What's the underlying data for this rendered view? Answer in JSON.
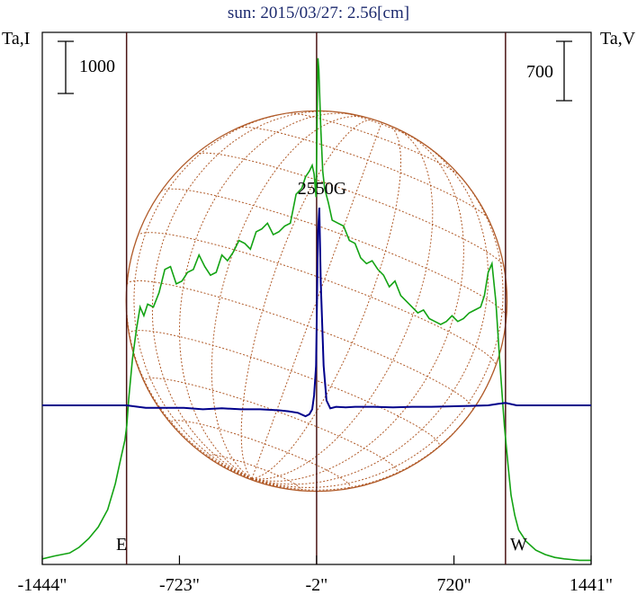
{
  "chart_data": {
    "type": "line",
    "title": "sun: 2015/03/27: 2.56[cm]",
    "ylabel_left": "Ta,I",
    "ylabel_right": "Ta,V",
    "scale_left": "1000",
    "scale_right": "700",
    "x_ticks": [
      "-1444\"",
      "-723\"",
      "-2\"",
      "720\"",
      "1441\""
    ],
    "x_range": [
      -1444,
      1441
    ],
    "limb_labels": {
      "east": "E",
      "west": "W"
    },
    "limb_x": [
      -1001,
      991
    ],
    "center_x": -2,
    "peak_label": "2550G",
    "solar_radius": 1001,
    "colors": {
      "intensity": "#13a313",
      "polarization": "#00008b",
      "grid": "#b05a28",
      "markers": "#4a1414"
    },
    "series": [
      {
        "key": "intensity",
        "x": [
          -1444,
          -1380,
          -1300,
          -1250,
          -1200,
          -1150,
          -1100,
          -1060,
          -1030,
          -1010,
          -1000,
          -990,
          -970,
          -950,
          -930,
          -910,
          -890,
          -860,
          -830,
          -800,
          -770,
          -740,
          -710,
          -680,
          -650,
          -620,
          -590,
          -560,
          -530,
          -500,
          -470,
          -440,
          -410,
          -380,
          -350,
          -320,
          -290,
          -260,
          -230,
          -200,
          -170,
          -140,
          -110,
          -80,
          -60,
          -40,
          -25,
          -15,
          -5,
          5,
          10,
          20,
          30,
          40,
          60,
          80,
          110,
          140,
          170,
          200,
          230,
          260,
          290,
          320,
          350,
          380,
          410,
          440,
          470,
          500,
          530,
          560,
          590,
          620,
          650,
          680,
          710,
          740,
          770,
          800,
          830,
          860,
          880,
          900,
          920,
          940,
          960,
          975,
          985,
          995,
          1005,
          1020,
          1040,
          1060,
          1100,
          1150,
          1200,
          1250,
          1300,
          1380,
          1441
        ],
        "y": [
          10,
          20,
          30,
          50,
          80,
          120,
          180,
          270,
          360,
          420,
          470,
          560,
          700,
          800,
          880,
          850,
          890,
          880,
          930,
          1010,
          1020,
          960,
          970,
          1000,
          1010,
          1060,
          1020,
          990,
          1000,
          1060,
          1040,
          1070,
          1110,
          1100,
          1080,
          1140,
          1150,
          1170,
          1130,
          1140,
          1160,
          1170,
          1270,
          1290,
          1330,
          1350,
          1370,
          1340,
          1260,
          1740,
          1700,
          1500,
          1350,
          1290,
          1240,
          1180,
          1170,
          1160,
          1110,
          1100,
          1050,
          1030,
          1040,
          1010,
          990,
          950,
          970,
          920,
          900,
          880,
          860,
          870,
          840,
          830,
          820,
          830,
          850,
          830,
          840,
          860,
          870,
          880,
          920,
          1000,
          1030,
          900,
          700,
          560,
          470,
          400,
          330,
          230,
          160,
          110,
          70,
          40,
          25,
          15,
          10,
          5,
          5
        ]
      },
      {
        "key": "polarization",
        "x": [
          -1444,
          -1300,
          -1150,
          -1001,
          -900,
          -800,
          -700,
          -600,
          -500,
          -400,
          -300,
          -200,
          -150,
          -100,
          -60,
          -40,
          -25,
          -15,
          -5,
          5,
          12,
          20,
          35,
          50,
          70,
          100,
          150,
          200,
          300,
          400,
          500,
          600,
          700,
          800,
          900,
          950,
          991,
          1050,
          1150,
          1300,
          1441
        ],
        "y": [
          0,
          0,
          0,
          0,
          -5,
          -5,
          -5,
          -8,
          -6,
          -8,
          -8,
          -10,
          -12,
          -15,
          -22,
          -18,
          -8,
          20,
          80,
          350,
          400,
          250,
          80,
          10,
          -6,
          -3,
          -4,
          -3,
          -3,
          -4,
          -3,
          -3,
          -2,
          -1,
          0,
          3,
          5,
          0,
          0,
          0,
          0
        ]
      }
    ]
  }
}
